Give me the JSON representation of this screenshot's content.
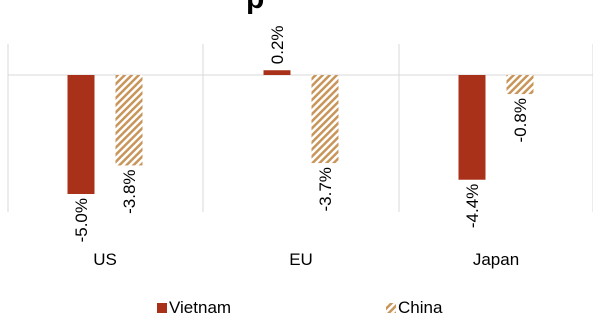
{
  "chart_data": {
    "type": "bar",
    "title": "",
    "title_fragment": "p",
    "categories": [
      "US",
      "EU",
      "Japan"
    ],
    "series": [
      {
        "name": "Vietnam",
        "values": [
          -5.0,
          0.2,
          -4.4
        ],
        "labels": [
          "-5.0%",
          "0.2%",
          "-4.4%"
        ],
        "color": "#a93019",
        "pattern": "solid"
      },
      {
        "name": "China",
        "values": [
          -3.8,
          -3.7,
          -0.8
        ],
        "labels": [
          "-3.8%",
          "-3.7%",
          "-0.8%"
        ],
        "color": "#c8955a",
        "pattern": "diagonal-hatch"
      }
    ],
    "ylim": [
      -5.9,
      0.2
    ],
    "grid": false,
    "category_separators": true,
    "legend_position": "bottom",
    "colors": {
      "vietnam": "#a93019",
      "china_hatch": "#c8955a",
      "axis": "#d9d9d9"
    }
  }
}
